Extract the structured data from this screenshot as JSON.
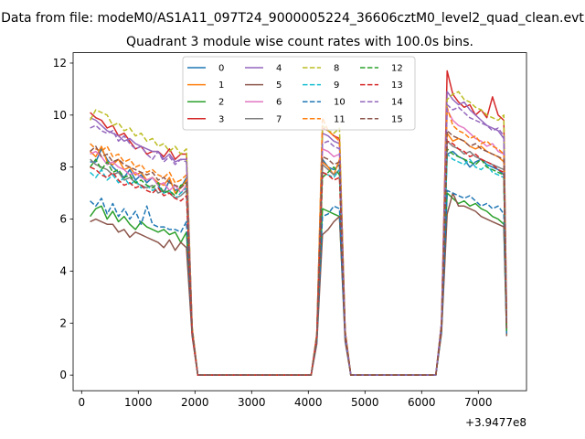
{
  "suptitle": "Data from file: modeM0/AS1A11_097T24_9000005224_36606cztM0_level2_quad_clean.evt",
  "chart_data": {
    "type": "line",
    "title": "Quadrant 3 module wise count rates with 100.0s bins.",
    "xlabel": "",
    "ylabel": "",
    "x_offset_label": "+3.9477e8",
    "xlim": [
      -150,
      7850
    ],
    "ylim": [
      -0.6,
      12.4
    ],
    "xticks": [
      0,
      1000,
      2000,
      3000,
      4000,
      5000,
      6000,
      7000
    ],
    "yticks": [
      0,
      2,
      4,
      6,
      8,
      10,
      12
    ],
    "legend_location": "upper center",
    "series": [
      {
        "name": "0",
        "color": "#1f77b4",
        "dash": "solid"
      },
      {
        "name": "1",
        "color": "#ff7f0e",
        "dash": "solid"
      },
      {
        "name": "2",
        "color": "#2ca02c",
        "dash": "solid"
      },
      {
        "name": "3",
        "color": "#d62728",
        "dash": "solid"
      },
      {
        "name": "4",
        "color": "#9467bd",
        "dash": "solid"
      },
      {
        "name": "5",
        "color": "#8c564b",
        "dash": "solid"
      },
      {
        "name": "6",
        "color": "#e377c2",
        "dash": "solid"
      },
      {
        "name": "7",
        "color": "#7f7f7f",
        "dash": "solid"
      },
      {
        "name": "8",
        "color": "#bcbd22",
        "dash": "dashed"
      },
      {
        "name": "9",
        "color": "#17becf",
        "dash": "dashed"
      },
      {
        "name": "10",
        "color": "#1f77b4",
        "dash": "dashed"
      },
      {
        "name": "11",
        "color": "#ff7f0e",
        "dash": "dashed"
      },
      {
        "name": "12",
        "color": "#2ca02c",
        "dash": "dashed"
      },
      {
        "name": "13",
        "color": "#d62728",
        "dash": "dashed"
      },
      {
        "name": "14",
        "color": "#9467bd",
        "dash": "dashed"
      },
      {
        "name": "15",
        "color": "#8c564b",
        "dash": "dashed"
      }
    ],
    "x": [
      150,
      250,
      350,
      450,
      550,
      650,
      750,
      850,
      950,
      1050,
      1150,
      1250,
      1350,
      1450,
      1550,
      1650,
      1750,
      1850,
      1950,
      2050,
      2150,
      2250,
      2350,
      2450,
      2550,
      2650,
      2750,
      2850,
      2950,
      3050,
      3150,
      3250,
      3350,
      3450,
      3550,
      3650,
      3750,
      3850,
      3950,
      4050,
      4150,
      4250,
      4350,
      4450,
      4550,
      4650,
      4750,
      4850,
      4950,
      5050,
      5150,
      5250,
      5350,
      5450,
      5550,
      5650,
      5750,
      5850,
      5950,
      6050,
      6150,
      6250,
      6350,
      6450,
      6550,
      6650,
      6750,
      6850,
      6950,
      7050,
      7150,
      7250,
      7350,
      7450,
      7500
    ],
    "values": [
      [
        8.2,
        8.2,
        8.7,
        8.3,
        8.0,
        7.8,
        7.6,
        7.9,
        7.5,
        7.7,
        7.4,
        7.6,
        7.3,
        7.0,
        7.5,
        7.1,
        7.2,
        7.6,
        1.8,
        0,
        0,
        0,
        0,
        0,
        0,
        0,
        0,
        0,
        0,
        0,
        0,
        0,
        0,
        0,
        0,
        0,
        0,
        0,
        0,
        0,
        1.5,
        8.3,
        8.0,
        7.9,
        8.1,
        1.6,
        0,
        0,
        0,
        0,
        0,
        0,
        0,
        0,
        0,
        0,
        0,
        0,
        0,
        0,
        0,
        0,
        1.8,
        8.5,
        8.6,
        8.4,
        8.3,
        8.0,
        8.2,
        8.3,
        8.1,
        8.0,
        7.9,
        7.7,
        1.8
      ],
      [
        8.6,
        8.4,
        8.8,
        8.2,
        8.1,
        8.3,
        7.9,
        8.0,
        7.7,
        7.8,
        7.5,
        7.6,
        7.4,
        7.3,
        7.6,
        7.0,
        7.2,
        7.5,
        1.8,
        0,
        0,
        0,
        0,
        0,
        0,
        0,
        0,
        0,
        0,
        0,
        0,
        0,
        0,
        0,
        0,
        0,
        0,
        0,
        0,
        0,
        1.5,
        8.2,
        8.0,
        7.7,
        8.3,
        1.6,
        0,
        0,
        0,
        0,
        0,
        0,
        0,
        0,
        0,
        0,
        0,
        0,
        0,
        0,
        0,
        0,
        1.8,
        9.3,
        9.0,
        9.1,
        9.0,
        8.8,
        8.7,
        8.8,
        8.6,
        8.5,
        8.4,
        8.2,
        1.9
      ],
      [
        6.1,
        6.4,
        6.5,
        6.0,
        6.3,
        5.9,
        6.1,
        5.8,
        5.6,
        5.9,
        5.7,
        5.6,
        5.5,
        5.6,
        5.4,
        5.5,
        5.1,
        5.5,
        1.6,
        0,
        0,
        0,
        0,
        0,
        0,
        0,
        0,
        0,
        0,
        0,
        0,
        0,
        0,
        0,
        0,
        0,
        0,
        0,
        0,
        0,
        1.4,
        6.4,
        6.3,
        6.2,
        6.1,
        1.5,
        0,
        0,
        0,
        0,
        0,
        0,
        0,
        0,
        0,
        0,
        0,
        0,
        0,
        0,
        0,
        0,
        1.7,
        7.0,
        6.8,
        6.6,
        6.7,
        6.5,
        6.6,
        6.4,
        6.3,
        6.1,
        6.0,
        5.8,
        1.6
      ],
      [
        10.1,
        9.9,
        9.8,
        9.5,
        9.6,
        9.2,
        9.3,
        9.0,
        8.7,
        8.8,
        8.5,
        8.6,
        8.6,
        8.4,
        8.7,
        8.3,
        8.5,
        8.5,
        1.8,
        0,
        0,
        0,
        0,
        0,
        0,
        0,
        0,
        0,
        0,
        0,
        0,
        0,
        0,
        0,
        0,
        0,
        0,
        0,
        0,
        0,
        1.6,
        9.5,
        9.4,
        9.2,
        9.1,
        1.7,
        0,
        0,
        0,
        0,
        0,
        0,
        0,
        0,
        0,
        0,
        0,
        0,
        0,
        0,
        0,
        0,
        2.0,
        11.7,
        10.8,
        10.5,
        10.3,
        10.4,
        10.0,
        10.2,
        9.9,
        10.7,
        10.0,
        9.8,
        2.2
      ],
      [
        9.9,
        9.8,
        9.6,
        9.4,
        9.3,
        9.2,
        9.0,
        9.1,
        8.9,
        8.8,
        8.7,
        8.6,
        8.6,
        8.3,
        8.5,
        8.2,
        8.3,
        8.3,
        1.8,
        0,
        0,
        0,
        0,
        0,
        0,
        0,
        0,
        0,
        0,
        0,
        0,
        0,
        0,
        0,
        0,
        0,
        0,
        0,
        0,
        0,
        1.5,
        9.3,
        9.2,
        9.0,
        8.9,
        1.7,
        0,
        0,
        0,
        0,
        0,
        0,
        0,
        0,
        0,
        0,
        0,
        0,
        0,
        0,
        0,
        0,
        2.0,
        10.9,
        10.6,
        10.4,
        10.5,
        10.2,
        10.0,
        9.8,
        9.6,
        9.5,
        9.4,
        9.1,
        2.0
      ],
      [
        5.9,
        6.0,
        5.9,
        5.8,
        5.8,
        5.5,
        5.6,
        5.3,
        5.5,
        5.4,
        5.3,
        5.2,
        5.1,
        4.9,
        5.2,
        4.8,
        5.1,
        4.9,
        1.5,
        0,
        0,
        0,
        0,
        0,
        0,
        0,
        0,
        0,
        0,
        0,
        0,
        0,
        0,
        0,
        0,
        0,
        0,
        0,
        0,
        0,
        1.2,
        5.4,
        5.6,
        5.9,
        6.1,
        1.3,
        0,
        0,
        0,
        0,
        0,
        0,
        0,
        0,
        0,
        0,
        0,
        0,
        0,
        0,
        0,
        0,
        1.6,
        6.2,
        7.0,
        6.5,
        6.5,
        6.4,
        6.3,
        6.1,
        6.0,
        5.9,
        5.8,
        5.7,
        1.5
      ],
      [
        8.5,
        8.6,
        8.4,
        8.1,
        8.2,
        8.0,
        7.9,
        7.7,
        7.8,
        7.6,
        7.5,
        7.6,
        7.3,
        7.4,
        7.1,
        7.3,
        7.0,
        7.3,
        1.7,
        0,
        0,
        0,
        0,
        0,
        0,
        0,
        0,
        0,
        0,
        0,
        0,
        0,
        0,
        0,
        0,
        0,
        0,
        0,
        0,
        0,
        1.5,
        8.7,
        8.6,
        8.4,
        8.5,
        1.6,
        0,
        0,
        0,
        0,
        0,
        0,
        0,
        0,
        0,
        0,
        0,
        0,
        0,
        0,
        0,
        0,
        1.8,
        10.2,
        9.8,
        9.6,
        9.5,
        9.3,
        9.1,
        9.0,
        8.8,
        8.9,
        8.6,
        8.5,
        1.9
      ],
      [
        8.3,
        8.1,
        8.0,
        7.9,
        7.7,
        7.8,
        7.5,
        7.6,
        7.4,
        7.3,
        7.2,
        7.3,
        7.0,
        7.1,
        7.0,
        6.8,
        6.9,
        7.1,
        1.7,
        0,
        0,
        0,
        0,
        0,
        0,
        0,
        0,
        0,
        0,
        0,
        0,
        0,
        0,
        0,
        0,
        0,
        0,
        0,
        0,
        0,
        1.4,
        8.1,
        7.9,
        7.7,
        7.9,
        1.6,
        0,
        0,
        0,
        0,
        0,
        0,
        0,
        0,
        0,
        0,
        0,
        0,
        0,
        0,
        0,
        0,
        1.8,
        9.0,
        8.8,
        8.7,
        8.5,
        8.6,
        8.4,
        8.3,
        8.2,
        8.1,
        8.0,
        7.9,
        1.8
      ],
      [
        9.8,
        10.2,
        10.1,
        10.0,
        9.6,
        9.7,
        9.4,
        9.5,
        9.2,
        9.3,
        9.0,
        9.1,
        8.8,
        8.9,
        8.6,
        8.8,
        8.5,
        8.7,
        1.9,
        0,
        0,
        0,
        0,
        0,
        0,
        0,
        0,
        0,
        0,
        0,
        0,
        0,
        0,
        0,
        0,
        0,
        0,
        0,
        0,
        0,
        1.6,
        9.6,
        9.4,
        9.3,
        9.5,
        1.7,
        0,
        0,
        0,
        0,
        0,
        0,
        0,
        0,
        0,
        0,
        0,
        0,
        0,
        0,
        0,
        0,
        2.0,
        10.6,
        10.8,
        10.9,
        10.6,
        10.5,
        10.3,
        10.2,
        10.0,
        9.9,
        9.8,
        10.0,
        2.0
      ],
      [
        7.8,
        7.6,
        7.9,
        7.5,
        7.7,
        7.4,
        7.6,
        7.3,
        7.5,
        7.2,
        7.3,
        7.1,
        7.2,
        7.0,
        7.1,
        6.8,
        7.0,
        7.2,
        1.7,
        0,
        0,
        0,
        0,
        0,
        0,
        0,
        0,
        0,
        0,
        0,
        0,
        0,
        0,
        0,
        0,
        0,
        0,
        0,
        0,
        0,
        1.4,
        7.8,
        7.7,
        7.6,
        7.9,
        1.5,
        0,
        0,
        0,
        0,
        0,
        0,
        0,
        0,
        0,
        0,
        0,
        0,
        0,
        0,
        0,
        0,
        1.8,
        8.5,
        8.3,
        8.2,
        8.1,
        8.3,
        8.0,
        7.9,
        8.1,
        7.8,
        7.7,
        7.6,
        1.7
      ],
      [
        6.7,
        6.5,
        6.8,
        6.2,
        6.6,
        6.1,
        6.4,
        6.0,
        6.3,
        5.8,
        6.5,
        5.8,
        5.7,
        5.7,
        5.6,
        5.6,
        5.5,
        5.9,
        1.6,
        0,
        0,
        0,
        0,
        0,
        0,
        0,
        0,
        0,
        0,
        0,
        0,
        0,
        0,
        0,
        0,
        0,
        0,
        0,
        0,
        0,
        1.3,
        6.1,
        6.2,
        6.5,
        6.4,
        1.4,
        0,
        0,
        0,
        0,
        0,
        0,
        0,
        0,
        0,
        0,
        0,
        0,
        0,
        0,
        0,
        0,
        1.7,
        7.1,
        7.0,
        6.9,
        6.8,
        6.9,
        6.7,
        6.5,
        6.6,
        6.4,
        6.5,
        6.2,
        1.6
      ],
      [
        8.9,
        8.7,
        8.6,
        8.8,
        8.4,
        8.5,
        8.2,
        8.3,
        8.0,
        8.1,
        7.8,
        7.9,
        7.7,
        7.6,
        7.8,
        7.4,
        7.5,
        7.7,
        1.8,
        0,
        0,
        0,
        0,
        0,
        0,
        0,
        0,
        0,
        0,
        0,
        0,
        0,
        0,
        0,
        0,
        0,
        0,
        0,
        0,
        0,
        1.5,
        9.9,
        9.4,
        9.2,
        9.0,
        1.7,
        0,
        0,
        0,
        0,
        0,
        0,
        0,
        0,
        0,
        0,
        0,
        0,
        0,
        0,
        0,
        0,
        1.9,
        10.3,
        9.6,
        9.4,
        9.3,
        9.1,
        9.2,
        8.9,
        9.0,
        8.8,
        8.7,
        8.5,
        1.8
      ],
      [
        8.0,
        8.3,
        7.9,
        8.2,
        7.8,
        7.9,
        7.6,
        7.7,
        7.4,
        7.5,
        7.3,
        7.2,
        7.4,
        7.0,
        7.1,
        6.9,
        7.3,
        7.4,
        1.7,
        0,
        0,
        0,
        0,
        0,
        0,
        0,
        0,
        0,
        0,
        0,
        0,
        0,
        0,
        0,
        0,
        0,
        0,
        0,
        0,
        0,
        1.4,
        7.6,
        7.8,
        8.0,
        7.7,
        1.5,
        0,
        0,
        0,
        0,
        0,
        0,
        0,
        0,
        0,
        0,
        0,
        0,
        0,
        0,
        0,
        0,
        1.8,
        8.7,
        8.5,
        8.4,
        8.3,
        8.2,
        8.1,
        8.3,
        8.0,
        7.9,
        7.8,
        7.7,
        1.7
      ],
      [
        8.0,
        7.9,
        7.7,
        7.6,
        7.8,
        7.5,
        7.3,
        7.4,
        7.2,
        7.3,
        7.1,
        7.0,
        7.2,
        6.9,
        7.0,
        6.8,
        6.7,
        6.9,
        1.6,
        0,
        0,
        0,
        0,
        0,
        0,
        0,
        0,
        0,
        0,
        0,
        0,
        0,
        0,
        0,
        0,
        0,
        0,
        0,
        0,
        0,
        1.4,
        7.8,
        7.7,
        7.5,
        7.6,
        1.5,
        0,
        0,
        0,
        0,
        0,
        0,
        0,
        0,
        0,
        0,
        0,
        0,
        0,
        0,
        0,
        0,
        1.8,
        9.0,
        8.9,
        8.7,
        8.6,
        8.4,
        8.5,
        8.3,
        8.2,
        8.1,
        7.9,
        7.8,
        1.8
      ],
      [
        9.5,
        9.6,
        9.4,
        9.3,
        9.4,
        9.0,
        9.2,
        8.9,
        8.7,
        8.8,
        8.5,
        8.3,
        8.6,
        8.2,
        8.4,
        8.1,
        8.3,
        8.2,
        1.8,
        0,
        0,
        0,
        0,
        0,
        0,
        0,
        0,
        0,
        0,
        0,
        0,
        0,
        0,
        0,
        0,
        0,
        0,
        0,
        0,
        0,
        1.5,
        8.9,
        9.0,
        8.8,
        8.7,
        1.6,
        0,
        0,
        0,
        0,
        0,
        0,
        0,
        0,
        0,
        0,
        0,
        0,
        0,
        0,
        0,
        0,
        2.0,
        10.4,
        10.2,
        10.3,
        10.1,
        9.9,
        9.8,
        9.7,
        9.6,
        9.4,
        9.5,
        9.2,
        2.0
      ],
      [
        8.6,
        8.8,
        8.4,
        8.5,
        8.2,
        8.3,
        8.1,
        8.0,
        7.9,
        7.8,
        7.7,
        7.8,
        7.5,
        7.6,
        7.4,
        7.3,
        7.2,
        7.4,
        1.7,
        0,
        0,
        0,
        0,
        0,
        0,
        0,
        0,
        0,
        0,
        0,
        0,
        0,
        0,
        0,
        0,
        0,
        0,
        0,
        0,
        0,
        1.5,
        8.4,
        8.3,
        8.1,
        8.2,
        1.6,
        0,
        0,
        0,
        0,
        0,
        0,
        0,
        0,
        0,
        0,
        0,
        0,
        0,
        0,
        0,
        0,
        1.9,
        9.4,
        9.2,
        9.1,
        9.0,
        8.8,
        8.9,
        8.7,
        8.6,
        8.5,
        8.4,
        8.3,
        1.8
      ]
    ]
  }
}
